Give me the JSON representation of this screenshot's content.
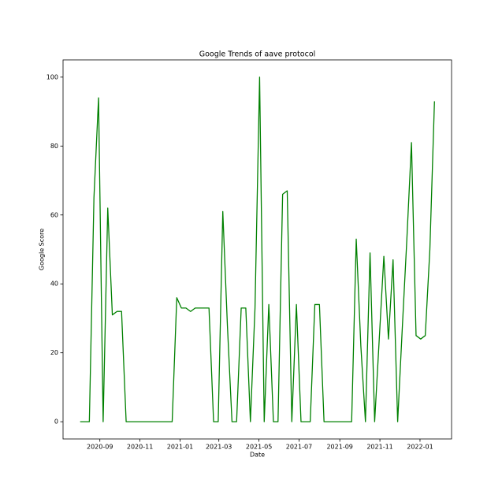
{
  "chart_data": {
    "type": "line",
    "title": "Google Trends of aave protocol",
    "x_label": "Date",
    "y_label": "Google Score",
    "x": [
      "2020-08-02",
      "2020-08-09",
      "2020-08-16",
      "2020-08-23",
      "2020-08-30",
      "2020-09-06",
      "2020-09-13",
      "2020-09-20",
      "2020-09-27",
      "2020-10-04",
      "2020-10-11",
      "2020-10-18",
      "2020-10-25",
      "2020-11-01",
      "2020-11-08",
      "2020-11-15",
      "2020-11-22",
      "2020-11-29",
      "2020-12-06",
      "2020-12-13",
      "2020-12-20",
      "2020-12-27",
      "2021-01-03",
      "2021-01-10",
      "2021-01-17",
      "2021-01-24",
      "2021-01-31",
      "2021-02-07",
      "2021-02-14",
      "2021-02-21",
      "2021-02-28",
      "2021-03-07",
      "2021-03-14",
      "2021-03-21",
      "2021-03-28",
      "2021-04-04",
      "2021-04-11",
      "2021-04-18",
      "2021-04-25",
      "2021-05-02",
      "2021-05-09",
      "2021-05-16",
      "2021-05-23",
      "2021-05-30",
      "2021-06-06",
      "2021-06-13",
      "2021-06-20",
      "2021-06-27",
      "2021-07-04",
      "2021-07-11",
      "2021-07-18",
      "2021-07-25",
      "2021-08-01",
      "2021-08-08",
      "2021-08-15",
      "2021-08-22",
      "2021-08-29",
      "2021-09-05",
      "2021-09-12",
      "2021-09-19",
      "2021-09-26",
      "2021-10-03",
      "2021-10-10",
      "2021-10-17",
      "2021-10-24",
      "2021-10-31",
      "2021-11-07",
      "2021-11-14",
      "2021-11-21",
      "2021-11-28",
      "2021-12-05",
      "2021-12-12",
      "2021-12-19",
      "2021-12-26",
      "2022-01-02",
      "2022-01-09",
      "2022-01-16",
      "2022-01-23"
    ],
    "values": [
      0,
      0,
      0,
      65,
      94,
      0,
      62,
      31,
      32,
      32,
      0,
      0,
      0,
      0,
      0,
      0,
      0,
      0,
      0,
      0,
      0,
      36,
      33,
      33,
      32,
      33,
      33,
      33,
      33,
      0,
      0,
      61,
      28,
      0,
      0,
      33,
      33,
      0,
      33,
      100,
      0,
      34,
      0,
      0,
      66,
      67,
      0,
      34,
      0,
      0,
      0,
      34,
      34,
      0,
      0,
      0,
      0,
      0,
      0,
      0,
      53,
      22,
      0,
      49,
      0,
      24,
      48,
      24,
      47,
      0,
      27,
      53,
      81,
      25,
      24,
      25,
      50,
      93
    ],
    "color": "#008000",
    "xlim": [
      "2020-07-07",
      "2022-02-18"
    ],
    "xticks": [
      {
        "value": "2020-09-01",
        "label": "2020-09"
      },
      {
        "value": "2020-11-01",
        "label": "2020-11"
      },
      {
        "value": "2021-01-01",
        "label": "2021-01"
      },
      {
        "value": "2021-03-01",
        "label": "2021-03"
      },
      {
        "value": "2021-05-01",
        "label": "2021-05"
      },
      {
        "value": "2021-07-01",
        "label": "2021-07"
      },
      {
        "value": "2021-09-01",
        "label": "2021-09"
      },
      {
        "value": "2021-11-01",
        "label": "2021-11"
      },
      {
        "value": "2022-01-01",
        "label": "2022-01"
      }
    ],
    "ylim": [
      -5,
      105
    ],
    "yticks": [
      0,
      20,
      40,
      60,
      80,
      100
    ],
    "grid": false
  }
}
